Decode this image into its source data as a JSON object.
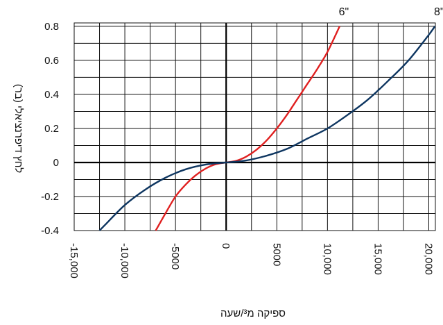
{
  "chart_data": {
    "type": "line",
    "ylabel": "לחץ דיפרנציאלי (בר)",
    "xlabel": "ספיקה מ³/שעה",
    "xlim": [
      -15000,
      20650
    ],
    "ylim": [
      -0.4,
      0.82
    ],
    "x_ticks": [
      -15000,
      -10000,
      -5000,
      0,
      5000,
      10000,
      15000,
      20000
    ],
    "x_tick_labels": [
      "-15,000",
      "-10,000",
      "-5000",
      "0",
      "5000",
      "10,000",
      "15,000",
      "20,000"
    ],
    "y_ticks": [
      -0.4,
      -0.2,
      0,
      0.2,
      0.4,
      0.6,
      0.8
    ],
    "y_tick_labels": [
      "-0.4",
      "-0.2",
      "0",
      "0.2",
      "0.4",
      "0.6",
      "0.8"
    ],
    "grid": true,
    "series": [
      {
        "name": "6\"",
        "color": "#e02020",
        "x": [
          -6950,
          -6000,
          -5000,
          -4000,
          -3000,
          -2000,
          -1000,
          0,
          1000,
          2000,
          3000,
          4000,
          5000,
          6000,
          7000,
          8000,
          9000,
          10000,
          11200
        ],
        "y": [
          -0.4,
          -0.3,
          -0.2,
          -0.13,
          -0.075,
          -0.035,
          -0.01,
          0,
          0.01,
          0.035,
          0.075,
          0.13,
          0.2,
          0.28,
          0.37,
          0.46,
          0.55,
          0.65,
          0.8
        ]
      },
      {
        "name": "8\"",
        "color": "#0d3560",
        "x": [
          -12500,
          -12000,
          -10000,
          -8000,
          -6000,
          -4000,
          -2000,
          0,
          2000,
          4000,
          6000,
          8000,
          10000,
          12000,
          14000,
          16000,
          18000,
          20000,
          20600
        ],
        "y": [
          -0.4,
          -0.37,
          -0.25,
          -0.16,
          -0.09,
          -0.04,
          -0.012,
          0,
          0.012,
          0.04,
          0.08,
          0.14,
          0.2,
          0.28,
          0.37,
          0.48,
          0.6,
          0.75,
          0.8
        ]
      }
    ]
  }
}
